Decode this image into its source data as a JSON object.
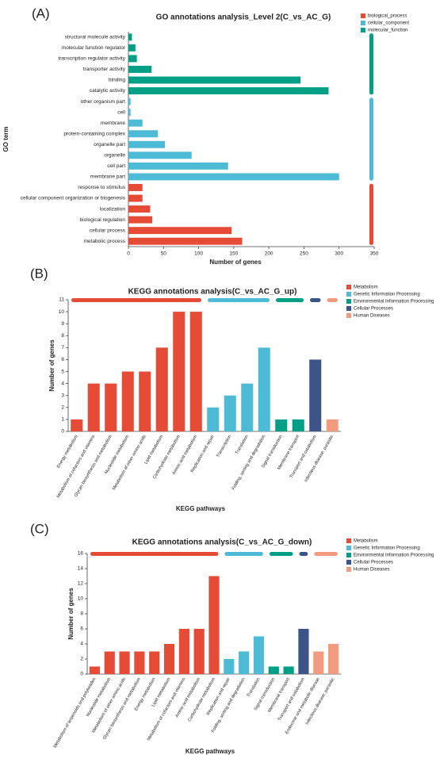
{
  "chart_data": [
    {
      "type": "hbar",
      "panel_label": "(A)",
      "title": "GO annotations analysis_Level 2(C_vs_AC_G)",
      "x_label": "Number of genes",
      "y_label": "GO term",
      "categories": [
        "structural molecule activity",
        "molecular function regulator",
        "transcription regulator activity",
        "transporter activity",
        "binding",
        "catalytic activity",
        "other organism part",
        "cell",
        "membrane",
        "protein-containing complex",
        "organelle part",
        "organelle",
        "cell part",
        "membrane part",
        "response to stimulus",
        "cellular component organization or biogenesis",
        "localization",
        "biological regulation",
        "cellular process",
        "metabolic process"
      ],
      "series": [
        {
          "name": "biological_process",
          "color": "#e64b35",
          "values": [
            null,
            null,
            null,
            null,
            null,
            null,
            null,
            null,
            null,
            null,
            null,
            null,
            null,
            null,
            20,
            20,
            31,
            34,
            147,
            162
          ]
        },
        {
          "name": "cellular_component",
          "color": "#4dbbd5",
          "values": [
            null,
            null,
            null,
            null,
            null,
            null,
            3,
            3,
            20,
            42,
            52,
            90,
            142,
            300,
            null,
            null,
            null,
            null,
            null,
            null
          ]
        },
        {
          "name": "molecular_function",
          "color": "#00a087",
          "values": [
            5,
            10,
            12,
            33,
            245,
            285,
            null,
            null,
            null,
            null,
            null,
            null,
            null,
            null,
            null,
            null,
            null,
            null,
            null,
            null
          ]
        }
      ],
      "xlim": [
        0,
        350
      ],
      "xticks": [
        0,
        50,
        100,
        150,
        200,
        250,
        300,
        350
      ]
    },
    {
      "type": "bar",
      "panel_label": "(B)",
      "title": "KEGG annotations analysis(C_vs_AC_G_up)",
      "x_label": "KEGG pathways",
      "y_label": "Number of genes",
      "categories": [
        "Energy metabolism",
        "Metabolism of cofactors and vitamins",
        "Glycan biosynthesis and metabolism",
        "Nucleotide metabolism",
        "Metabolism of other amino acids",
        "Lipid metabolism",
        "Carbohydrate metabolism",
        "Amino acid metabolism",
        "Replication and repair",
        "Transcription",
        "Translation",
        "Folding, sorting and degradation",
        "Signal transduction",
        "Membrane transport",
        "Transport and catabolism",
        "Infectious disease: parasitic"
      ],
      "series": [
        {
          "name": "Metabolism",
          "color": "#e64b35",
          "values": [
            1,
            4,
            4,
            5,
            5,
            7,
            10,
            10,
            null,
            null,
            null,
            null,
            null,
            null,
            null,
            null
          ]
        },
        {
          "name": "Genetic Information Processing",
          "color": "#4dbbd5",
          "values": [
            null,
            null,
            null,
            null,
            null,
            null,
            null,
            null,
            2,
            3,
            4,
            7,
            null,
            null,
            null,
            null
          ]
        },
        {
          "name": "Environmental Information Processing",
          "color": "#00a087",
          "values": [
            null,
            null,
            null,
            null,
            null,
            null,
            null,
            null,
            null,
            null,
            null,
            null,
            1,
            1,
            null,
            null
          ]
        },
        {
          "name": "Cellular Processes",
          "color": "#3c5488",
          "values": [
            null,
            null,
            null,
            null,
            null,
            null,
            null,
            null,
            null,
            null,
            null,
            null,
            null,
            null,
            6,
            null
          ]
        },
        {
          "name": "Human Diseases",
          "color": "#f39b7f",
          "values": [
            null,
            null,
            null,
            null,
            null,
            null,
            null,
            null,
            null,
            null,
            null,
            null,
            null,
            null,
            null,
            1
          ]
        }
      ],
      "ylim": [
        0,
        11
      ],
      "yticks": [
        0,
        1,
        2,
        3,
        4,
        5,
        6,
        7,
        8,
        9,
        10,
        11
      ]
    },
    {
      "type": "bar",
      "panel_label": "(C)",
      "title": "KEGG annotations analysis(C_vs_AC_G_down)",
      "x_label": "KEGG pathways",
      "y_label": "Number of genes",
      "categories": [
        "Metabolism of terpenoids and polyketides",
        "Nucleotide metabolism",
        "Metabolism of other amino acids",
        "Glycan biosynthesis and metabolism",
        "Energy metabolism",
        "Lipid metabolism",
        "Metabolism of cofactors and vitamins",
        "Amino acid metabolism",
        "Carbohydrate metabolism",
        "Replication and repair",
        "Folding, sorting and degradation",
        "Translation",
        "Signal transduction",
        "Membrane transport",
        "Transport and catabolism",
        "Endocrine and metabolic disease",
        "Infectious disease: parasitic"
      ],
      "series": [
        {
          "name": "Metabolism",
          "color": "#e64b35",
          "values": [
            1,
            3,
            3,
            3,
            3,
            4,
            6,
            6,
            13,
            null,
            null,
            null,
            null,
            null,
            null,
            null,
            null
          ]
        },
        {
          "name": "Genetic Information Processing",
          "color": "#4dbbd5",
          "values": [
            null,
            null,
            null,
            null,
            null,
            null,
            null,
            null,
            null,
            2,
            3,
            5,
            null,
            null,
            null,
            null,
            null
          ]
        },
        {
          "name": "Environmental Information Processing",
          "color": "#00a087",
          "values": [
            null,
            null,
            null,
            null,
            null,
            null,
            null,
            null,
            null,
            null,
            null,
            null,
            1,
            1,
            null,
            null,
            null
          ]
        },
        {
          "name": "Cellular Processes",
          "color": "#3c5488",
          "values": [
            null,
            null,
            null,
            null,
            null,
            null,
            null,
            null,
            null,
            null,
            null,
            null,
            null,
            null,
            6,
            null,
            null
          ]
        },
        {
          "name": "Human Diseases",
          "color": "#f39b7f",
          "values": [
            null,
            null,
            null,
            null,
            null,
            null,
            null,
            null,
            null,
            null,
            null,
            null,
            null,
            null,
            null,
            3,
            4
          ]
        }
      ],
      "ylim": [
        0,
        16
      ],
      "yticks": [
        0,
        2,
        4,
        6,
        8,
        10,
        12,
        14,
        16
      ]
    }
  ]
}
